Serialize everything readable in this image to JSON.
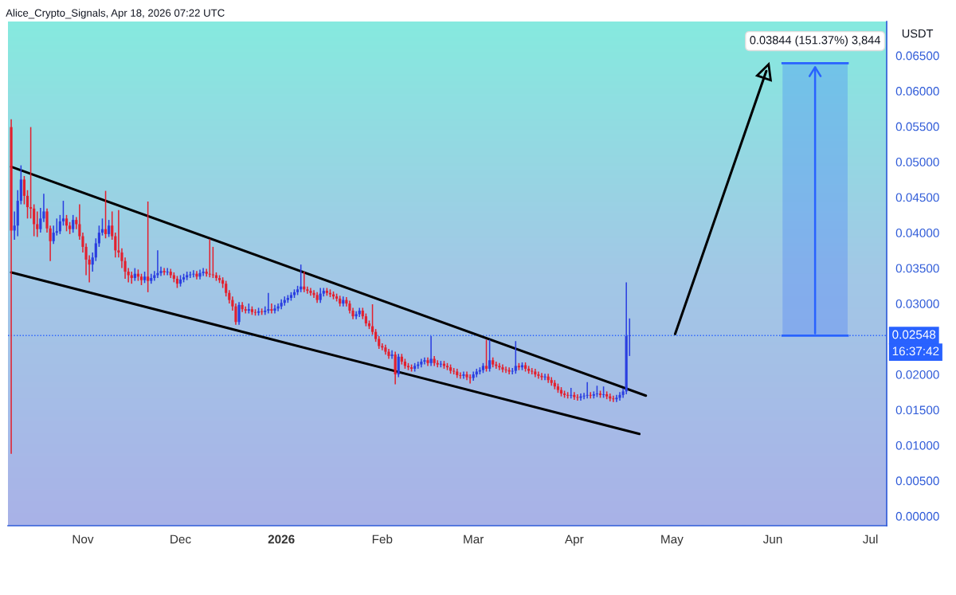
{
  "chart_data": {
    "type": "candlestick",
    "title": "Alice_Crypto_Signals, Apr 18, 2026 07:22 UTC",
    "ylabel": "USDT",
    "x": [
      "2025-10-10",
      "2025-10-11",
      "2025-10-12",
      "2025-10-13",
      "2025-10-14",
      "2025-10-15",
      "2025-10-16",
      "2025-10-17",
      "2025-10-18",
      "2025-10-19",
      "2025-10-20",
      "2025-10-21",
      "2025-10-22",
      "2025-10-23",
      "2025-10-24",
      "2025-10-25",
      "2025-10-26",
      "2025-10-27",
      "2025-10-28",
      "2025-10-29",
      "2025-10-30",
      "2025-10-31",
      "2025-11-01",
      "2025-11-02",
      "2025-11-03",
      "2025-11-04",
      "2025-11-05",
      "2025-11-06",
      "2025-11-07",
      "2025-11-08",
      "2025-11-09",
      "2025-11-10",
      "2025-11-11",
      "2025-11-12",
      "2025-11-13",
      "2025-11-14",
      "2025-11-15",
      "2025-11-16",
      "2025-11-17",
      "2025-11-18",
      "2025-11-19",
      "2025-11-20",
      "2025-11-21",
      "2025-11-22",
      "2025-11-23",
      "2025-11-24",
      "2025-11-25",
      "2025-11-26",
      "2025-11-27",
      "2025-11-28",
      "2025-11-29",
      "2025-11-30",
      "2025-12-01",
      "2025-12-02",
      "2025-12-03",
      "2025-12-04",
      "2025-12-05",
      "2025-12-06",
      "2025-12-07",
      "2025-12-08",
      "2025-12-09",
      "2025-12-10",
      "2025-12-11",
      "2025-12-12",
      "2025-12-13",
      "2025-12-14",
      "2025-12-15",
      "2025-12-16",
      "2025-12-17",
      "2025-12-18",
      "2025-12-19",
      "2025-12-20",
      "2025-12-21",
      "2025-12-22",
      "2025-12-23",
      "2025-12-24",
      "2025-12-25",
      "2025-12-26",
      "2025-12-27",
      "2025-12-28",
      "2025-12-29",
      "2025-12-30",
      "2025-12-31",
      "2026-01-01",
      "2026-01-02",
      "2026-01-03",
      "2026-01-04",
      "2026-01-05",
      "2026-01-06",
      "2026-01-07",
      "2026-01-08",
      "2026-01-09",
      "2026-01-10",
      "2026-01-11",
      "2026-01-12",
      "2026-01-13",
      "2026-01-14",
      "2026-01-15",
      "2026-01-16",
      "2026-01-17",
      "2026-01-18",
      "2026-01-19",
      "2026-01-20",
      "2026-01-21",
      "2026-01-22",
      "2026-01-23",
      "2026-01-24",
      "2026-01-25",
      "2026-01-26",
      "2026-01-27",
      "2026-01-28",
      "2026-01-29",
      "2026-01-30",
      "2026-01-31",
      "2026-02-01",
      "2026-02-02",
      "2026-02-03",
      "2026-02-04",
      "2026-02-05",
      "2026-02-06",
      "2026-02-07",
      "2026-02-08",
      "2026-02-09",
      "2026-02-10",
      "2026-02-11",
      "2026-02-12",
      "2026-02-13",
      "2026-02-14",
      "2026-02-15",
      "2026-02-16",
      "2026-02-17",
      "2026-02-18",
      "2026-02-19",
      "2026-02-20",
      "2026-02-21",
      "2026-02-22",
      "2026-02-23",
      "2026-02-24",
      "2026-02-25",
      "2026-02-26",
      "2026-02-27",
      "2026-02-28",
      "2026-03-01",
      "2026-03-02",
      "2026-03-03",
      "2026-03-04",
      "2026-03-05",
      "2026-03-06",
      "2026-03-07",
      "2026-03-08",
      "2026-03-09",
      "2026-03-10",
      "2026-03-11",
      "2026-03-12",
      "2026-03-13",
      "2026-03-14",
      "2026-03-15",
      "2026-03-16",
      "2026-03-17",
      "2026-03-18",
      "2026-03-19",
      "2026-03-20",
      "2026-03-21",
      "2026-03-22",
      "2026-03-23",
      "2026-03-24",
      "2026-03-25",
      "2026-03-26",
      "2026-03-27",
      "2026-03-28",
      "2026-03-29",
      "2026-03-30",
      "2026-03-31",
      "2026-04-01",
      "2026-04-02",
      "2026-04-03",
      "2026-04-04",
      "2026-04-05",
      "2026-04-06",
      "2026-04-07",
      "2026-04-08",
      "2026-04-09",
      "2026-04-10",
      "2026-04-11",
      "2026-04-12",
      "2026-04-13",
      "2026-04-14",
      "2026-04-15",
      "2026-04-16",
      "2026-04-17",
      "2026-04-18"
    ],
    "ohlc": [
      [
        0.0549,
        0.056,
        0.0088,
        0.0403
      ],
      [
        0.0403,
        0.043,
        0.039,
        0.041
      ],
      [
        0.041,
        0.046,
        0.0395,
        0.0445
      ],
      [
        0.0445,
        0.0495,
        0.044,
        0.0475
      ],
      [
        0.0475,
        0.048,
        0.044,
        0.0452
      ],
      [
        0.0452,
        0.046,
        0.042,
        0.0436
      ],
      [
        0.0436,
        0.0549,
        0.042,
        0.0434
      ],
      [
        0.0434,
        0.044,
        0.0395,
        0.0412
      ],
      [
        0.0412,
        0.043,
        0.0394,
        0.0405
      ],
      [
        0.0405,
        0.0435,
        0.04,
        0.042
      ],
      [
        0.042,
        0.0455,
        0.0415,
        0.043
      ],
      [
        0.043,
        0.0434,
        0.04,
        0.0406
      ],
      [
        0.0406,
        0.041,
        0.036,
        0.0388
      ],
      [
        0.0388,
        0.041,
        0.0384,
        0.04
      ],
      [
        0.04,
        0.042,
        0.0396,
        0.0402
      ],
      [
        0.0402,
        0.0425,
        0.0398,
        0.0416
      ],
      [
        0.0416,
        0.0445,
        0.041,
        0.042
      ],
      [
        0.042,
        0.0425,
        0.0402,
        0.041
      ],
      [
        0.041,
        0.0415,
        0.0398,
        0.0405
      ],
      [
        0.0405,
        0.0425,
        0.04,
        0.0418
      ],
      [
        0.0418,
        0.0422,
        0.0405,
        0.0412
      ],
      [
        0.0412,
        0.044,
        0.039,
        0.0395
      ],
      [
        0.0395,
        0.04,
        0.0372,
        0.038
      ],
      [
        0.038,
        0.0385,
        0.034,
        0.0362
      ],
      [
        0.0362,
        0.0368,
        0.033,
        0.0355
      ],
      [
        0.0355,
        0.0372,
        0.0345,
        0.0365
      ],
      [
        0.0365,
        0.0392,
        0.036,
        0.0385
      ],
      [
        0.0385,
        0.041,
        0.038,
        0.04
      ],
      [
        0.04,
        0.042,
        0.0396,
        0.0405
      ],
      [
        0.0405,
        0.0459,
        0.0392,
        0.0398
      ],
      [
        0.0398,
        0.0418,
        0.0394,
        0.041
      ],
      [
        0.041,
        0.043,
        0.039,
        0.0395
      ],
      [
        0.0395,
        0.04,
        0.0365,
        0.0375
      ],
      [
        0.0375,
        0.0432,
        0.0365,
        0.0372
      ],
      [
        0.0372,
        0.0378,
        0.035,
        0.036
      ],
      [
        0.036,
        0.0365,
        0.0335,
        0.0345
      ],
      [
        0.0345,
        0.035,
        0.033,
        0.034
      ],
      [
        0.034,
        0.0345,
        0.0328,
        0.0336
      ],
      [
        0.0336,
        0.035,
        0.0332,
        0.0342
      ],
      [
        0.0342,
        0.0348,
        0.0332,
        0.0338
      ],
      [
        0.0338,
        0.0342,
        0.0326,
        0.0333
      ],
      [
        0.0333,
        0.0345,
        0.0329,
        0.0338
      ],
      [
        0.0338,
        0.0444,
        0.0316,
        0.0332
      ],
      [
        0.0332,
        0.0342,
        0.0328,
        0.0336
      ],
      [
        0.0336,
        0.0346,
        0.0332,
        0.034
      ],
      [
        0.034,
        0.0375,
        0.0336,
        0.0343
      ],
      [
        0.0343,
        0.0352,
        0.0339,
        0.0346
      ],
      [
        0.0346,
        0.035,
        0.034,
        0.0344
      ],
      [
        0.0344,
        0.035,
        0.034,
        0.0345
      ],
      [
        0.0345,
        0.0349,
        0.0336,
        0.034
      ],
      [
        0.034,
        0.0344,
        0.033,
        0.0335
      ],
      [
        0.0335,
        0.0339,
        0.0322,
        0.0328
      ],
      [
        0.0328,
        0.034,
        0.0324,
        0.0334
      ],
      [
        0.0334,
        0.0342,
        0.033,
        0.0337
      ],
      [
        0.0337,
        0.0345,
        0.0333,
        0.034
      ],
      [
        0.034,
        0.0345,
        0.0336,
        0.0341
      ],
      [
        0.0341,
        0.0347,
        0.0337,
        0.0342
      ],
      [
        0.0342,
        0.0346,
        0.0334,
        0.0338
      ],
      [
        0.0338,
        0.0348,
        0.0334,
        0.0343
      ],
      [
        0.0343,
        0.035,
        0.0339,
        0.0345
      ],
      [
        0.0345,
        0.0349,
        0.0338,
        0.0342
      ],
      [
        0.0342,
        0.0391,
        0.0337,
        0.0341
      ],
      [
        0.0341,
        0.038,
        0.0336,
        0.034
      ],
      [
        0.034,
        0.0344,
        0.0332,
        0.0336
      ],
      [
        0.0336,
        0.034,
        0.0329,
        0.0333
      ],
      [
        0.0333,
        0.0337,
        0.0322,
        0.0328
      ],
      [
        0.0328,
        0.0332,
        0.031,
        0.0315
      ],
      [
        0.0315,
        0.0319,
        0.03,
        0.0305
      ],
      [
        0.0305,
        0.031,
        0.029,
        0.0296
      ],
      [
        0.0296,
        0.03,
        0.027,
        0.0274
      ],
      [
        0.0274,
        0.0302,
        0.027,
        0.0298
      ],
      [
        0.0298,
        0.0302,
        0.0288,
        0.0292
      ],
      [
        0.0292,
        0.0296,
        0.0286,
        0.029
      ],
      [
        0.029,
        0.03,
        0.0286,
        0.0292
      ],
      [
        0.0292,
        0.0296,
        0.0284,
        0.0288
      ],
      [
        0.0288,
        0.0292,
        0.0283,
        0.0287
      ],
      [
        0.0287,
        0.0294,
        0.0283,
        0.0289
      ],
      [
        0.0289,
        0.0293,
        0.0284,
        0.0288
      ],
      [
        0.0288,
        0.0296,
        0.0284,
        0.029
      ],
      [
        0.029,
        0.0315,
        0.0286,
        0.0292
      ],
      [
        0.0292,
        0.03,
        0.0286,
        0.029
      ],
      [
        0.029,
        0.0298,
        0.0286,
        0.0293
      ],
      [
        0.0293,
        0.03,
        0.0289,
        0.0296
      ],
      [
        0.0296,
        0.0306,
        0.0292,
        0.0301
      ],
      [
        0.0301,
        0.031,
        0.0297,
        0.0305
      ],
      [
        0.0305,
        0.0312,
        0.0301,
        0.0308
      ],
      [
        0.0308,
        0.0316,
        0.0304,
        0.0312
      ],
      [
        0.0312,
        0.032,
        0.0308,
        0.0316
      ],
      [
        0.0316,
        0.0325,
        0.0312,
        0.032
      ],
      [
        0.032,
        0.0355,
        0.0316,
        0.0324
      ],
      [
        0.0324,
        0.0345,
        0.0316,
        0.032
      ],
      [
        0.032,
        0.0324,
        0.0314,
        0.0318
      ],
      [
        0.0318,
        0.0322,
        0.0311,
        0.0315
      ],
      [
        0.0315,
        0.0319,
        0.0308,
        0.0312
      ],
      [
        0.0312,
        0.0316,
        0.0301,
        0.0305
      ],
      [
        0.0305,
        0.0322,
        0.0301,
        0.0314
      ],
      [
        0.0314,
        0.0322,
        0.031,
        0.0318
      ],
      [
        0.0318,
        0.0322,
        0.0311,
        0.0315
      ],
      [
        0.0315,
        0.032,
        0.0309,
        0.0313
      ],
      [
        0.0313,
        0.0317,
        0.0306,
        0.031
      ],
      [
        0.031,
        0.0314,
        0.0303,
        0.0307
      ],
      [
        0.0307,
        0.0311,
        0.0296,
        0.03
      ],
      [
        0.03,
        0.031,
        0.0296,
        0.0305
      ],
      [
        0.0305,
        0.0309,
        0.0296,
        0.03
      ],
      [
        0.03,
        0.0304,
        0.0286,
        0.029
      ],
      [
        0.029,
        0.0294,
        0.0278,
        0.0282
      ],
      [
        0.0282,
        0.0289,
        0.0278,
        0.0285
      ],
      [
        0.0285,
        0.0294,
        0.0281,
        0.029
      ],
      [
        0.029,
        0.0294,
        0.0278,
        0.0282
      ],
      [
        0.0282,
        0.0286,
        0.0268,
        0.0272
      ],
      [
        0.0272,
        0.0276,
        0.0264,
        0.0268
      ],
      [
        0.0268,
        0.0299,
        0.0256,
        0.026
      ],
      [
        0.026,
        0.0264,
        0.0246,
        0.025
      ],
      [
        0.025,
        0.0254,
        0.0236,
        0.024
      ],
      [
        0.024,
        0.0244,
        0.0234,
        0.0238
      ],
      [
        0.0238,
        0.0242,
        0.0228,
        0.0232
      ],
      [
        0.0232,
        0.0236,
        0.0222,
        0.0226
      ],
      [
        0.0226,
        0.0234,
        0.0222,
        0.0228
      ],
      [
        0.0228,
        0.0232,
        0.0186,
        0.02
      ],
      [
        0.02,
        0.0229,
        0.0196,
        0.0225
      ],
      [
        0.0225,
        0.0229,
        0.0214,
        0.0218
      ],
      [
        0.0218,
        0.0222,
        0.0208,
        0.0212
      ],
      [
        0.0212,
        0.0216,
        0.0206,
        0.021
      ],
      [
        0.021,
        0.0214,
        0.0204,
        0.0208
      ],
      [
        0.0208,
        0.0216,
        0.0204,
        0.0212
      ],
      [
        0.0212,
        0.0218,
        0.0208,
        0.0214
      ],
      [
        0.0214,
        0.0222,
        0.021,
        0.0218
      ],
      [
        0.0218,
        0.0224,
        0.0214,
        0.022
      ],
      [
        0.022,
        0.0224,
        0.0212,
        0.0216
      ],
      [
        0.0216,
        0.0254,
        0.0212,
        0.0222
      ],
      [
        0.0222,
        0.0226,
        0.0212,
        0.0216
      ],
      [
        0.0216,
        0.022,
        0.021,
        0.0214
      ],
      [
        0.0214,
        0.0219,
        0.021,
        0.0215
      ],
      [
        0.0215,
        0.0219,
        0.0208,
        0.0212
      ],
      [
        0.0212,
        0.0216,
        0.0206,
        0.021
      ],
      [
        0.021,
        0.0214,
        0.0201,
        0.0205
      ],
      [
        0.0205,
        0.0209,
        0.02,
        0.0204
      ],
      [
        0.0204,
        0.0208,
        0.0195,
        0.0199
      ],
      [
        0.0199,
        0.0203,
        0.0194,
        0.0198
      ],
      [
        0.0198,
        0.0204,
        0.0194,
        0.02
      ],
      [
        0.02,
        0.0204,
        0.0192,
        0.0196
      ],
      [
        0.0196,
        0.02,
        0.0187,
        0.0195
      ],
      [
        0.0195,
        0.0204,
        0.0191,
        0.02
      ],
      [
        0.02,
        0.0208,
        0.0196,
        0.0204
      ],
      [
        0.0204,
        0.021,
        0.02,
        0.0206
      ],
      [
        0.0206,
        0.0216,
        0.0202,
        0.0212
      ],
      [
        0.0212,
        0.0249,
        0.0204,
        0.0208
      ],
      [
        0.0208,
        0.0249,
        0.0204,
        0.022
      ],
      [
        0.022,
        0.0224,
        0.021,
        0.0214
      ],
      [
        0.0214,
        0.0218,
        0.0208,
        0.0212
      ],
      [
        0.0212,
        0.0216,
        0.0206,
        0.021
      ],
      [
        0.021,
        0.0214,
        0.0203,
        0.0207
      ],
      [
        0.0207,
        0.0211,
        0.0202,
        0.0206
      ],
      [
        0.0206,
        0.021,
        0.02,
        0.0204
      ],
      [
        0.0204,
        0.0209,
        0.02,
        0.0205
      ],
      [
        0.0205,
        0.0247,
        0.0201,
        0.0212
      ],
      [
        0.0212,
        0.0216,
        0.0206,
        0.021
      ],
      [
        0.021,
        0.0217,
        0.0206,
        0.0213
      ],
      [
        0.0213,
        0.0217,
        0.0204,
        0.0208
      ],
      [
        0.0208,
        0.0212,
        0.0201,
        0.0205
      ],
      [
        0.0205,
        0.0209,
        0.02,
        0.0204
      ],
      [
        0.0204,
        0.0208,
        0.0196,
        0.02
      ],
      [
        0.02,
        0.0204,
        0.0194,
        0.0198
      ],
      [
        0.0198,
        0.0202,
        0.0192,
        0.0196
      ],
      [
        0.0196,
        0.0201,
        0.0192,
        0.0197
      ],
      [
        0.0197,
        0.0201,
        0.0188,
        0.0192
      ],
      [
        0.0192,
        0.0196,
        0.0184,
        0.0188
      ],
      [
        0.0188,
        0.0192,
        0.0179,
        0.0183
      ],
      [
        0.0183,
        0.0187,
        0.0174,
        0.0178
      ],
      [
        0.0178,
        0.0182,
        0.0169,
        0.0173
      ],
      [
        0.0173,
        0.0177,
        0.0167,
        0.0171
      ],
      [
        0.0171,
        0.0175,
        0.0166,
        0.017
      ],
      [
        0.017,
        0.0181,
        0.0166,
        0.0171
      ],
      [
        0.0171,
        0.0175,
        0.0164,
        0.0168
      ],
      [
        0.0168,
        0.0172,
        0.0163,
        0.0167
      ],
      [
        0.0167,
        0.0173,
        0.0163,
        0.0169
      ],
      [
        0.0169,
        0.0174,
        0.0165,
        0.017
      ],
      [
        0.017,
        0.0189,
        0.0166,
        0.0171
      ],
      [
        0.0171,
        0.0175,
        0.0166,
        0.017
      ],
      [
        0.017,
        0.0176,
        0.0166,
        0.0172
      ],
      [
        0.0172,
        0.0184,
        0.0168,
        0.0173
      ],
      [
        0.0173,
        0.0177,
        0.0167,
        0.0171
      ],
      [
        0.0171,
        0.0183,
        0.0167,
        0.0172
      ],
      [
        0.0172,
        0.0176,
        0.0165,
        0.0169
      ],
      [
        0.0169,
        0.0173,
        0.0162,
        0.0166
      ],
      [
        0.0166,
        0.017,
        0.0161,
        0.0165
      ],
      [
        0.0165,
        0.0171,
        0.0161,
        0.0167
      ],
      [
        0.0167,
        0.0175,
        0.0163,
        0.0171
      ],
      [
        0.0171,
        0.018,
        0.0167,
        0.0176
      ],
      [
        0.0176,
        0.033,
        0.0172,
        0.0254
      ],
      [
        0.0254,
        0.0279,
        0.0226,
        0.02548
      ]
    ],
    "series": [
      {
        "type": "line",
        "color": "#000000",
        "x": [
          "2025-10-10",
          "2026-04-23"
        ],
        "values": [
          0.0493,
          0.017
        ]
      },
      {
        "type": "line",
        "color": "#000000",
        "x": [
          "2025-10-10",
          "2026-04-21"
        ],
        "values": [
          0.0344,
          0.0116
        ]
      },
      {
        "type": "line",
        "color": "#000000",
        "marker": "triangle",
        "x": [
          "2026-05-02",
          "2026-05-30"
        ],
        "values": [
          0.0257,
          0.0628
        ]
      },
      {
        "type": "bar",
        "color": "#2962ff",
        "x": [
          "2026-06-14"
        ],
        "base": [
          0.02548
        ],
        "values": [
          0.03844
        ]
      }
    ],
    "ref_lines": [
      {
        "axis": "y",
        "value": 0.02548,
        "label": "0.02548",
        "color": "#2962ff",
        "line_style": "dotted"
      }
    ],
    "annotations": [
      "16:37:42",
      {
        "text": "0.03844 (151.37%) 3,844",
        "x": "2026-06-14",
        "y": 0.06392
      }
    ],
    "xlim": [
      "2025-10-09",
      "2026-07-06"
    ],
    "xticks": [
      {
        "value": "2025-11-01",
        "label": "Nov"
      },
      {
        "value": "2025-12-01",
        "label": "Dec"
      },
      {
        "value": "2026-01-01",
        "label": "2026"
      },
      {
        "value": "2026-02-01",
        "label": "Feb"
      },
      {
        "value": "2026-03-01",
        "label": "Mar"
      },
      {
        "value": "2026-04-01",
        "label": "Apr"
      },
      {
        "value": "2026-05-01",
        "label": "May"
      },
      {
        "value": "2026-06-01",
        "label": "Jun"
      },
      {
        "value": "2026-07-01",
        "label": "Jul"
      }
    ],
    "ylim": [
      -0.00135,
      0.0698
    ],
    "yticks": [
      {
        "value": 0,
        "label": "0.00000"
      },
      {
        "value": 0.005,
        "label": "0.00500"
      },
      {
        "value": 0.01,
        "label": "0.01000"
      },
      {
        "value": 0.015,
        "label": "0.01500"
      },
      {
        "value": 0.02,
        "label": "0.02000"
      },
      {
        "value": 0.03,
        "label": "0.03000"
      },
      {
        "value": 0.035,
        "label": "0.03500"
      },
      {
        "value": 0.04,
        "label": "0.04000"
      },
      {
        "value": 0.045,
        "label": "0.04500"
      },
      {
        "value": 0.05,
        "label": "0.05000"
      },
      {
        "value": 0.055,
        "label": "0.05500"
      },
      {
        "value": 0.06,
        "label": "0.06000"
      },
      {
        "value": 0.065,
        "label": "0.06500"
      }
    ]
  }
}
